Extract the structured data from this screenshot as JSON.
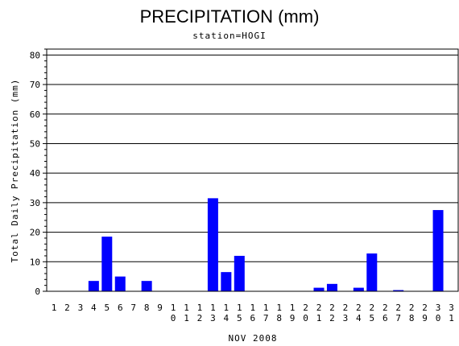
{
  "chart_data": {
    "type": "bar",
    "title": "PRECIPITATION (mm)",
    "subtitle": "station=HOGI",
    "xlabel": "NOV 2008",
    "ylabel": "Total Daily Precipitation (mm)",
    "ylim": [
      0,
      82
    ],
    "yticks": [
      0,
      10,
      20,
      30,
      40,
      50,
      60,
      70,
      80
    ],
    "grid": true,
    "bar_color": "#0000ff",
    "categories": [
      "1",
      "2",
      "3",
      "4",
      "5",
      "6",
      "7",
      "8",
      "9",
      "10",
      "11",
      "12",
      "13",
      "14",
      "15",
      "16",
      "17",
      "18",
      "19",
      "20",
      "21",
      "22",
      "23",
      "24",
      "25",
      "26",
      "27",
      "28",
      "29",
      "30",
      "31"
    ],
    "values": [
      0,
      0,
      0,
      3.5,
      18.5,
      5,
      0,
      3.5,
      0,
      0,
      0,
      0,
      31.5,
      6.5,
      12,
      0,
      0,
      0,
      0,
      0,
      1.2,
      2.5,
      0,
      1.2,
      12.8,
      0,
      0.4,
      0,
      0,
      27.5,
      0
    ]
  }
}
